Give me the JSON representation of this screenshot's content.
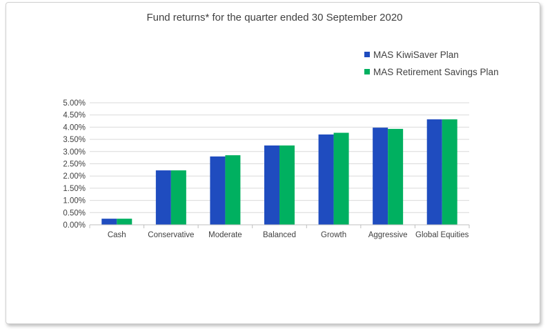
{
  "chart_data": {
    "type": "bar",
    "title": "Fund returns* for the quarter ended 30 September 2020",
    "xlabel": "",
    "ylabel": "",
    "categories": [
      "Cash",
      "Conservative",
      "Moderate",
      "Balanced",
      "Growth",
      "Aggressive",
      "Global Equities"
    ],
    "series": [
      {
        "name": "MAS KiwiSaver Plan",
        "color": "#1f4cbf",
        "values": [
          0.25,
          2.23,
          2.8,
          3.25,
          3.7,
          3.98,
          4.32
        ]
      },
      {
        "name": "MAS Retirement Savings Plan",
        "color": "#00b060",
        "values": [
          0.25,
          2.23,
          2.85,
          3.25,
          3.77,
          3.93,
          4.32
        ]
      }
    ],
    "ylim": [
      0,
      5
    ],
    "ytick_values": [
      0,
      0.5,
      1.0,
      1.5,
      2.0,
      2.5,
      3.0,
      3.5,
      4.0,
      4.5,
      5.0
    ],
    "ytick_labels": [
      "0.00%",
      "0.50%",
      "1.00%",
      "1.50%",
      "2.00%",
      "2.50%",
      "3.00%",
      "3.50%",
      "4.00%",
      "4.50%",
      "5.00%"
    ],
    "grid": true,
    "legend_position": "top-right"
  }
}
